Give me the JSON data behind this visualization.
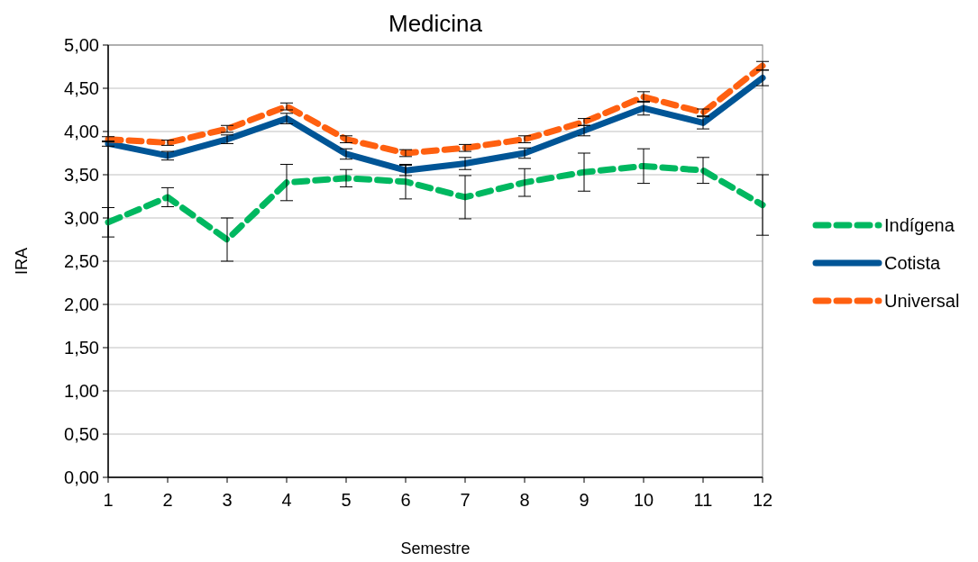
{
  "chart_data": {
    "type": "line",
    "title": "Medicina",
    "xlabel": "Semestre",
    "ylabel": "IRA",
    "x": [
      1,
      2,
      3,
      4,
      5,
      6,
      7,
      8,
      9,
      10,
      11,
      12
    ],
    "xlim": [
      1,
      12
    ],
    "xticks": [
      1,
      2,
      3,
      4,
      5,
      6,
      7,
      8,
      9,
      10,
      11,
      12
    ],
    "ylim": [
      0,
      5
    ],
    "yticks": [
      {
        "value": 0,
        "label": "0,00"
      },
      {
        "value": 0.5,
        "label": "0,50"
      },
      {
        "value": 1,
        "label": "1,00"
      },
      {
        "value": 1.5,
        "label": "1,50"
      },
      {
        "value": 2,
        "label": "2,00"
      },
      {
        "value": 2.5,
        "label": "2,50"
      },
      {
        "value": 3,
        "label": "3,00"
      },
      {
        "value": 3.5,
        "label": "3,50"
      },
      {
        "value": 4,
        "label": "4,00"
      },
      {
        "value": 4.5,
        "label": "4,50"
      },
      {
        "value": 5,
        "label": "5,00"
      }
    ],
    "grid": "y",
    "legend": "right",
    "marker": "none",
    "series": [
      {
        "name": "Indígena",
        "color": "#00b860",
        "line_style": "dashed",
        "values": [
          2.95,
          3.24,
          2.75,
          3.41,
          3.46,
          3.42,
          3.24,
          3.41,
          3.53,
          3.6,
          3.55,
          3.15
        ],
        "errors": [
          0.17,
          0.11,
          0.25,
          0.21,
          0.1,
          0.2,
          0.25,
          0.16,
          0.22,
          0.2,
          0.15,
          0.35
        ]
      },
      {
        "name": "Cotista",
        "color": "#005596",
        "line_style": "solid",
        "values": [
          3.86,
          3.72,
          3.91,
          4.15,
          3.74,
          3.55,
          3.63,
          3.75,
          4.01,
          4.27,
          4.1,
          4.62
        ],
        "errors": [
          0.03,
          0.05,
          0.05,
          0.06,
          0.06,
          0.06,
          0.07,
          0.06,
          0.06,
          0.08,
          0.07,
          0.09
        ]
      },
      {
        "name": "Universal",
        "color": "#ff6010",
        "line_style": "dashed",
        "values": [
          3.91,
          3.87,
          4.03,
          4.29,
          3.91,
          3.75,
          3.81,
          3.91,
          4.11,
          4.4,
          4.22,
          4.76
        ],
        "errors": [
          0.03,
          0.03,
          0.04,
          0.04,
          0.04,
          0.04,
          0.04,
          0.04,
          0.04,
          0.06,
          0.04,
          0.05
        ]
      }
    ]
  }
}
